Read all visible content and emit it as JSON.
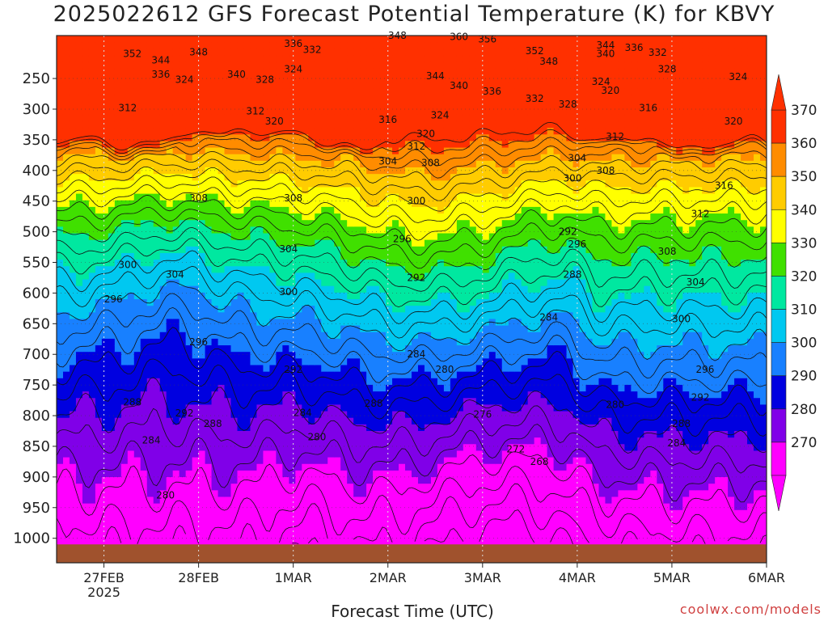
{
  "chart_data": {
    "type": "heatmap",
    "title": "2025022612 GFS Forecast Potential Temperature (K) for KBVY",
    "xlabel": "Forecast Time (UTC)",
    "ylabel": "",
    "credit": "coolwx.com/models",
    "x_ticks": [
      "27FEB",
      "28FEB",
      "1MAR",
      "2MAR",
      "3MAR",
      "4MAR",
      "5MAR",
      "6MAR"
    ],
    "x_year_label": "2025",
    "y_ticks": [
      250,
      300,
      350,
      400,
      450,
      500,
      550,
      600,
      650,
      700,
      750,
      800,
      850,
      900,
      950,
      1000
    ],
    "y_axis": "pressure (hPa), inverted",
    "colorbar": {
      "levels": [
        370,
        360,
        350,
        340,
        330,
        320,
        310,
        300,
        290,
        280,
        270
      ],
      "colors": [
        "#ff3000",
        "#ff8c00",
        "#ffcc00",
        "#ffff00",
        "#40e000",
        "#00e8a0",
        "#00c8f0",
        "#1880ff",
        "#0000e0",
        "#8000e8",
        "#ff00ff"
      ]
    },
    "grid": true,
    "contour_labels": [
      {
        "value": 352,
        "t": 0.3,
        "p": 210
      },
      {
        "value": 344,
        "t": 0.6,
        "p": 220
      },
      {
        "value": 348,
        "t": 1.0,
        "p": 207
      },
      {
        "value": 336,
        "t": 0.6,
        "p": 243
      },
      {
        "value": 324,
        "t": 0.85,
        "p": 252
      },
      {
        "value": 340,
        "t": 1.4,
        "p": 243
      },
      {
        "value": 328,
        "t": 1.7,
        "p": 252
      },
      {
        "value": 336,
        "t": 2.0,
        "p": 193
      },
      {
        "value": 332,
        "t": 2.2,
        "p": 203
      },
      {
        "value": 324,
        "t": 2.0,
        "p": 235
      },
      {
        "value": 348,
        "t": 3.1,
        "p": 180
      },
      {
        "value": 360,
        "t": 3.75,
        "p": 182
      },
      {
        "value": 356,
        "t": 4.05,
        "p": 186
      },
      {
        "value": 352,
        "t": 4.55,
        "p": 205
      },
      {
        "value": 348,
        "t": 4.7,
        "p": 222
      },
      {
        "value": 344,
        "t": 3.5,
        "p": 246
      },
      {
        "value": 340,
        "t": 3.75,
        "p": 262
      },
      {
        "value": 336,
        "t": 4.1,
        "p": 271
      },
      {
        "value": 332,
        "t": 4.55,
        "p": 283
      },
      {
        "value": 328,
        "t": 4.9,
        "p": 292
      },
      {
        "value": 344,
        "t": 5.3,
        "p": 196
      },
      {
        "value": 340,
        "t": 5.3,
        "p": 210
      },
      {
        "value": 336,
        "t": 5.6,
        "p": 200
      },
      {
        "value": 332,
        "t": 5.85,
        "p": 208
      },
      {
        "value": 328,
        "t": 5.95,
        "p": 235
      },
      {
        "value": 324,
        "t": 6.7,
        "p": 247
      },
      {
        "value": 324,
        "t": 5.25,
        "p": 255
      },
      {
        "value": 320,
        "t": 5.35,
        "p": 270
      },
      {
        "value": 316,
        "t": 5.75,
        "p": 298
      },
      {
        "value": 320,
        "t": 6.65,
        "p": 320
      },
      {
        "value": 312,
        "t": 0.25,
        "p": 298
      },
      {
        "value": 312,
        "t": 1.6,
        "p": 303
      },
      {
        "value": 320,
        "t": 1.8,
        "p": 320
      },
      {
        "value": 316,
        "t": 3.0,
        "p": 317
      },
      {
        "value": 324,
        "t": 3.55,
        "p": 310
      },
      {
        "value": 320,
        "t": 3.4,
        "p": 340
      },
      {
        "value": 312,
        "t": 3.3,
        "p": 361
      },
      {
        "value": 312,
        "t": 5.4,
        "p": 345
      },
      {
        "value": 304,
        "t": 3.0,
        "p": 385
      },
      {
        "value": 308,
        "t": 3.45,
        "p": 388
      },
      {
        "value": 304,
        "t": 5.0,
        "p": 380
      },
      {
        "value": 300,
        "t": 4.95,
        "p": 413
      },
      {
        "value": 308,
        "t": 5.3,
        "p": 400
      },
      {
        "value": 316,
        "t": 6.55,
        "p": 425
      },
      {
        "value": 308,
        "t": 1.0,
        "p": 445
      },
      {
        "value": 308,
        "t": 2.0,
        "p": 445
      },
      {
        "value": 300,
        "t": 3.3,
        "p": 450
      },
      {
        "value": 312,
        "t": 6.3,
        "p": 471
      },
      {
        "value": 292,
        "t": 4.9,
        "p": 500
      },
      {
        "value": 296,
        "t": 5.0,
        "p": 520
      },
      {
        "value": 296,
        "t": 3.15,
        "p": 512
      },
      {
        "value": 304,
        "t": 1.95,
        "p": 528
      },
      {
        "value": 308,
        "t": 5.95,
        "p": 532
      },
      {
        "value": 300,
        "t": 0.25,
        "p": 554
      },
      {
        "value": 304,
        "t": 0.75,
        "p": 570
      },
      {
        "value": 292,
        "t": 3.3,
        "p": 575
      },
      {
        "value": 288,
        "t": 4.95,
        "p": 570
      },
      {
        "value": 304,
        "t": 6.25,
        "p": 582
      },
      {
        "value": 300,
        "t": 1.95,
        "p": 598
      },
      {
        "value": 296,
        "t": 0.1,
        "p": 610
      },
      {
        "value": 284,
        "t": 4.7,
        "p": 640
      },
      {
        "value": 300,
        "t": 6.1,
        "p": 642
      },
      {
        "value": 296,
        "t": 1.0,
        "p": 680
      },
      {
        "value": 284,
        "t": 3.3,
        "p": 700
      },
      {
        "value": 292,
        "t": 2.0,
        "p": 725
      },
      {
        "value": 280,
        "t": 3.6,
        "p": 725
      },
      {
        "value": 296,
        "t": 6.35,
        "p": 725
      },
      {
        "value": 288,
        "t": 0.3,
        "p": 778
      },
      {
        "value": 292,
        "t": 0.85,
        "p": 796
      },
      {
        "value": 288,
        "t": 1.15,
        "p": 813
      },
      {
        "value": 284,
        "t": 2.1,
        "p": 795
      },
      {
        "value": 288,
        "t": 2.85,
        "p": 780
      },
      {
        "value": 276,
        "t": 4.0,
        "p": 798
      },
      {
        "value": 280,
        "t": 5.4,
        "p": 782
      },
      {
        "value": 292,
        "t": 6.3,
        "p": 770
      },
      {
        "value": 288,
        "t": 6.1,
        "p": 813
      },
      {
        "value": 280,
        "t": 2.25,
        "p": 835
      },
      {
        "value": 284,
        "t": 0.5,
        "p": 840
      },
      {
        "value": 284,
        "t": 6.05,
        "p": 845
      },
      {
        "value": 272,
        "t": 4.35,
        "p": 855
      },
      {
        "value": 268,
        "t": 4.6,
        "p": 875
      },
      {
        "value": 280,
        "t": 0.65,
        "p": 930
      }
    ]
  }
}
